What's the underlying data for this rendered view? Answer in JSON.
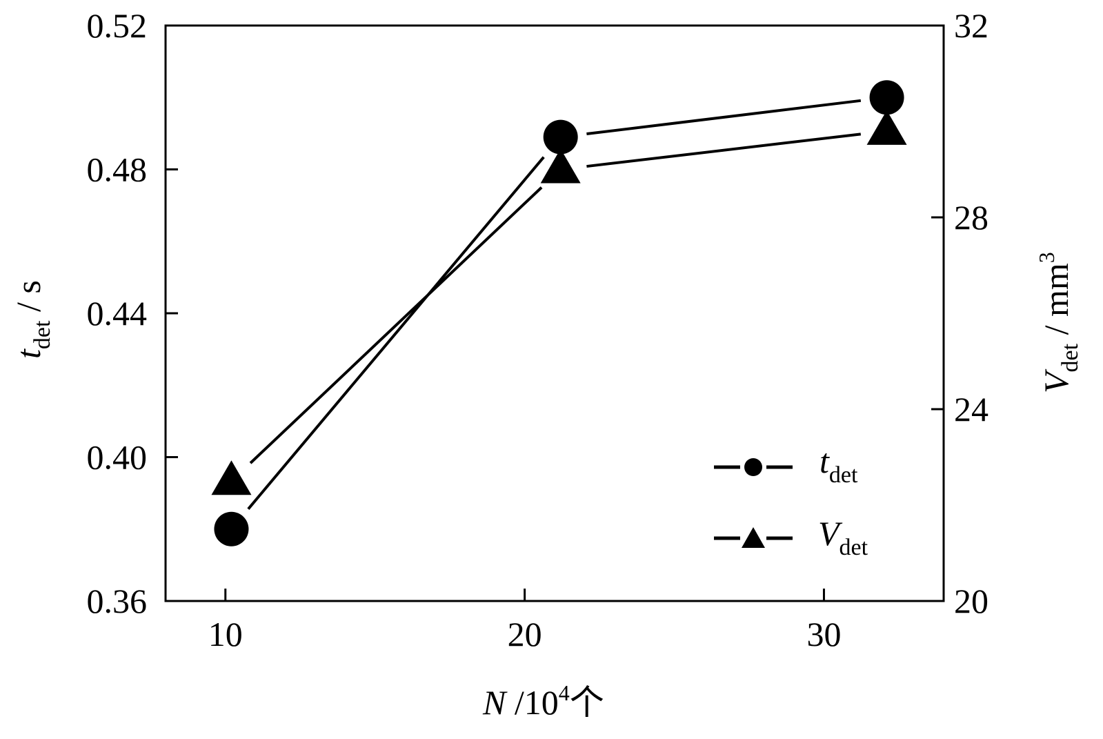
{
  "chart_data": {
    "type": "line",
    "x": [
      10.2,
      21.2,
      32.1
    ],
    "xticks": [
      "10",
      "20",
      "30"
    ],
    "xlim": [
      8,
      34
    ],
    "xlabel": {
      "var": "N",
      "rest": " /10",
      "sup": "4",
      "unit": "个"
    },
    "ylabel_left": {
      "var": "t",
      "sub": "det",
      "unit": " / s"
    },
    "ylabel_right": {
      "var": "V",
      "sub": "det",
      "unit": " / mm",
      "sup": "3"
    },
    "yticks_left": [
      "0.36",
      "0.40",
      "0.44",
      "0.48",
      "0.52"
    ],
    "ylim_left": [
      0.36,
      0.52
    ],
    "yticks_right": [
      "20",
      "24",
      "28",
      "32"
    ],
    "ylim_right": [
      20,
      32
    ],
    "series": [
      {
        "name": "t",
        "sub": "det",
        "axis": "left",
        "marker": "circle",
        "values": [
          0.38,
          0.489,
          0.5
        ]
      },
      {
        "name": "V",
        "sub": "det",
        "axis": "right",
        "marker": "triangle",
        "values": [
          22.5,
          29.0,
          29.8
        ]
      }
    ],
    "legend_position": "bottom-right",
    "grid": false
  }
}
